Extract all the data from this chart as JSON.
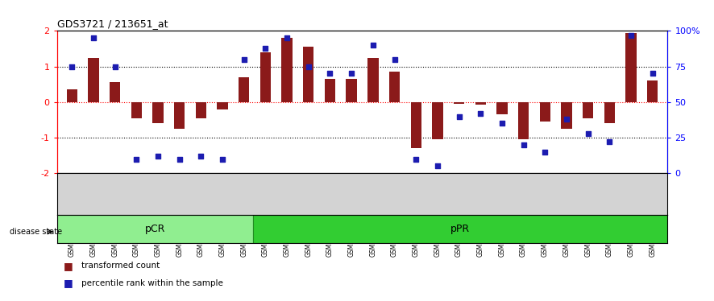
{
  "title": "GDS3721 / 213651_at",
  "samples": [
    "GSM559062",
    "GSM559063",
    "GSM559064",
    "GSM559065",
    "GSM559066",
    "GSM559067",
    "GSM559068",
    "GSM559069",
    "GSM559042",
    "GSM559043",
    "GSM559044",
    "GSM559045",
    "GSM559046",
    "GSM559047",
    "GSM559048",
    "GSM559049",
    "GSM559050",
    "GSM559051",
    "GSM559052",
    "GSM559053",
    "GSM559054",
    "GSM559055",
    "GSM559056",
    "GSM559057",
    "GSM559058",
    "GSM559059",
    "GSM559060",
    "GSM559061"
  ],
  "bar_values": [
    0.35,
    1.25,
    0.55,
    -0.45,
    -0.6,
    -0.75,
    -0.45,
    -0.2,
    0.7,
    1.4,
    1.8,
    1.55,
    0.65,
    0.65,
    1.25,
    0.85,
    -1.3,
    -1.05,
    -0.05,
    -0.08,
    -0.35,
    -1.05,
    -0.55,
    -0.75,
    -0.45,
    -0.6,
    1.95,
    0.6
  ],
  "dot_values": [
    75,
    95,
    75,
    10,
    12,
    10,
    12,
    10,
    80,
    88,
    95,
    75,
    70,
    70,
    90,
    80,
    10,
    5,
    40,
    42,
    35,
    20,
    15,
    38,
    28,
    22,
    97,
    70
  ],
  "pCR_count": 9,
  "pPR_count": 19,
  "bar_color": "#8B1A1A",
  "dot_color": "#1C1CB0",
  "pCR_color": "#90EE90",
  "pPR_color": "#32CD32",
  "ylim": [
    -2,
    2
  ],
  "yticks_left": [
    -2,
    -1,
    0,
    1,
    2
  ],
  "yticks_right": [
    0,
    25,
    50,
    75,
    100
  ],
  "right_tick_labels": [
    "0",
    "25",
    "50",
    "75",
    "100%"
  ],
  "dotted_lines_black": [
    -1,
    1
  ],
  "dotted_line_red": 0,
  "background_color": "#ffffff"
}
